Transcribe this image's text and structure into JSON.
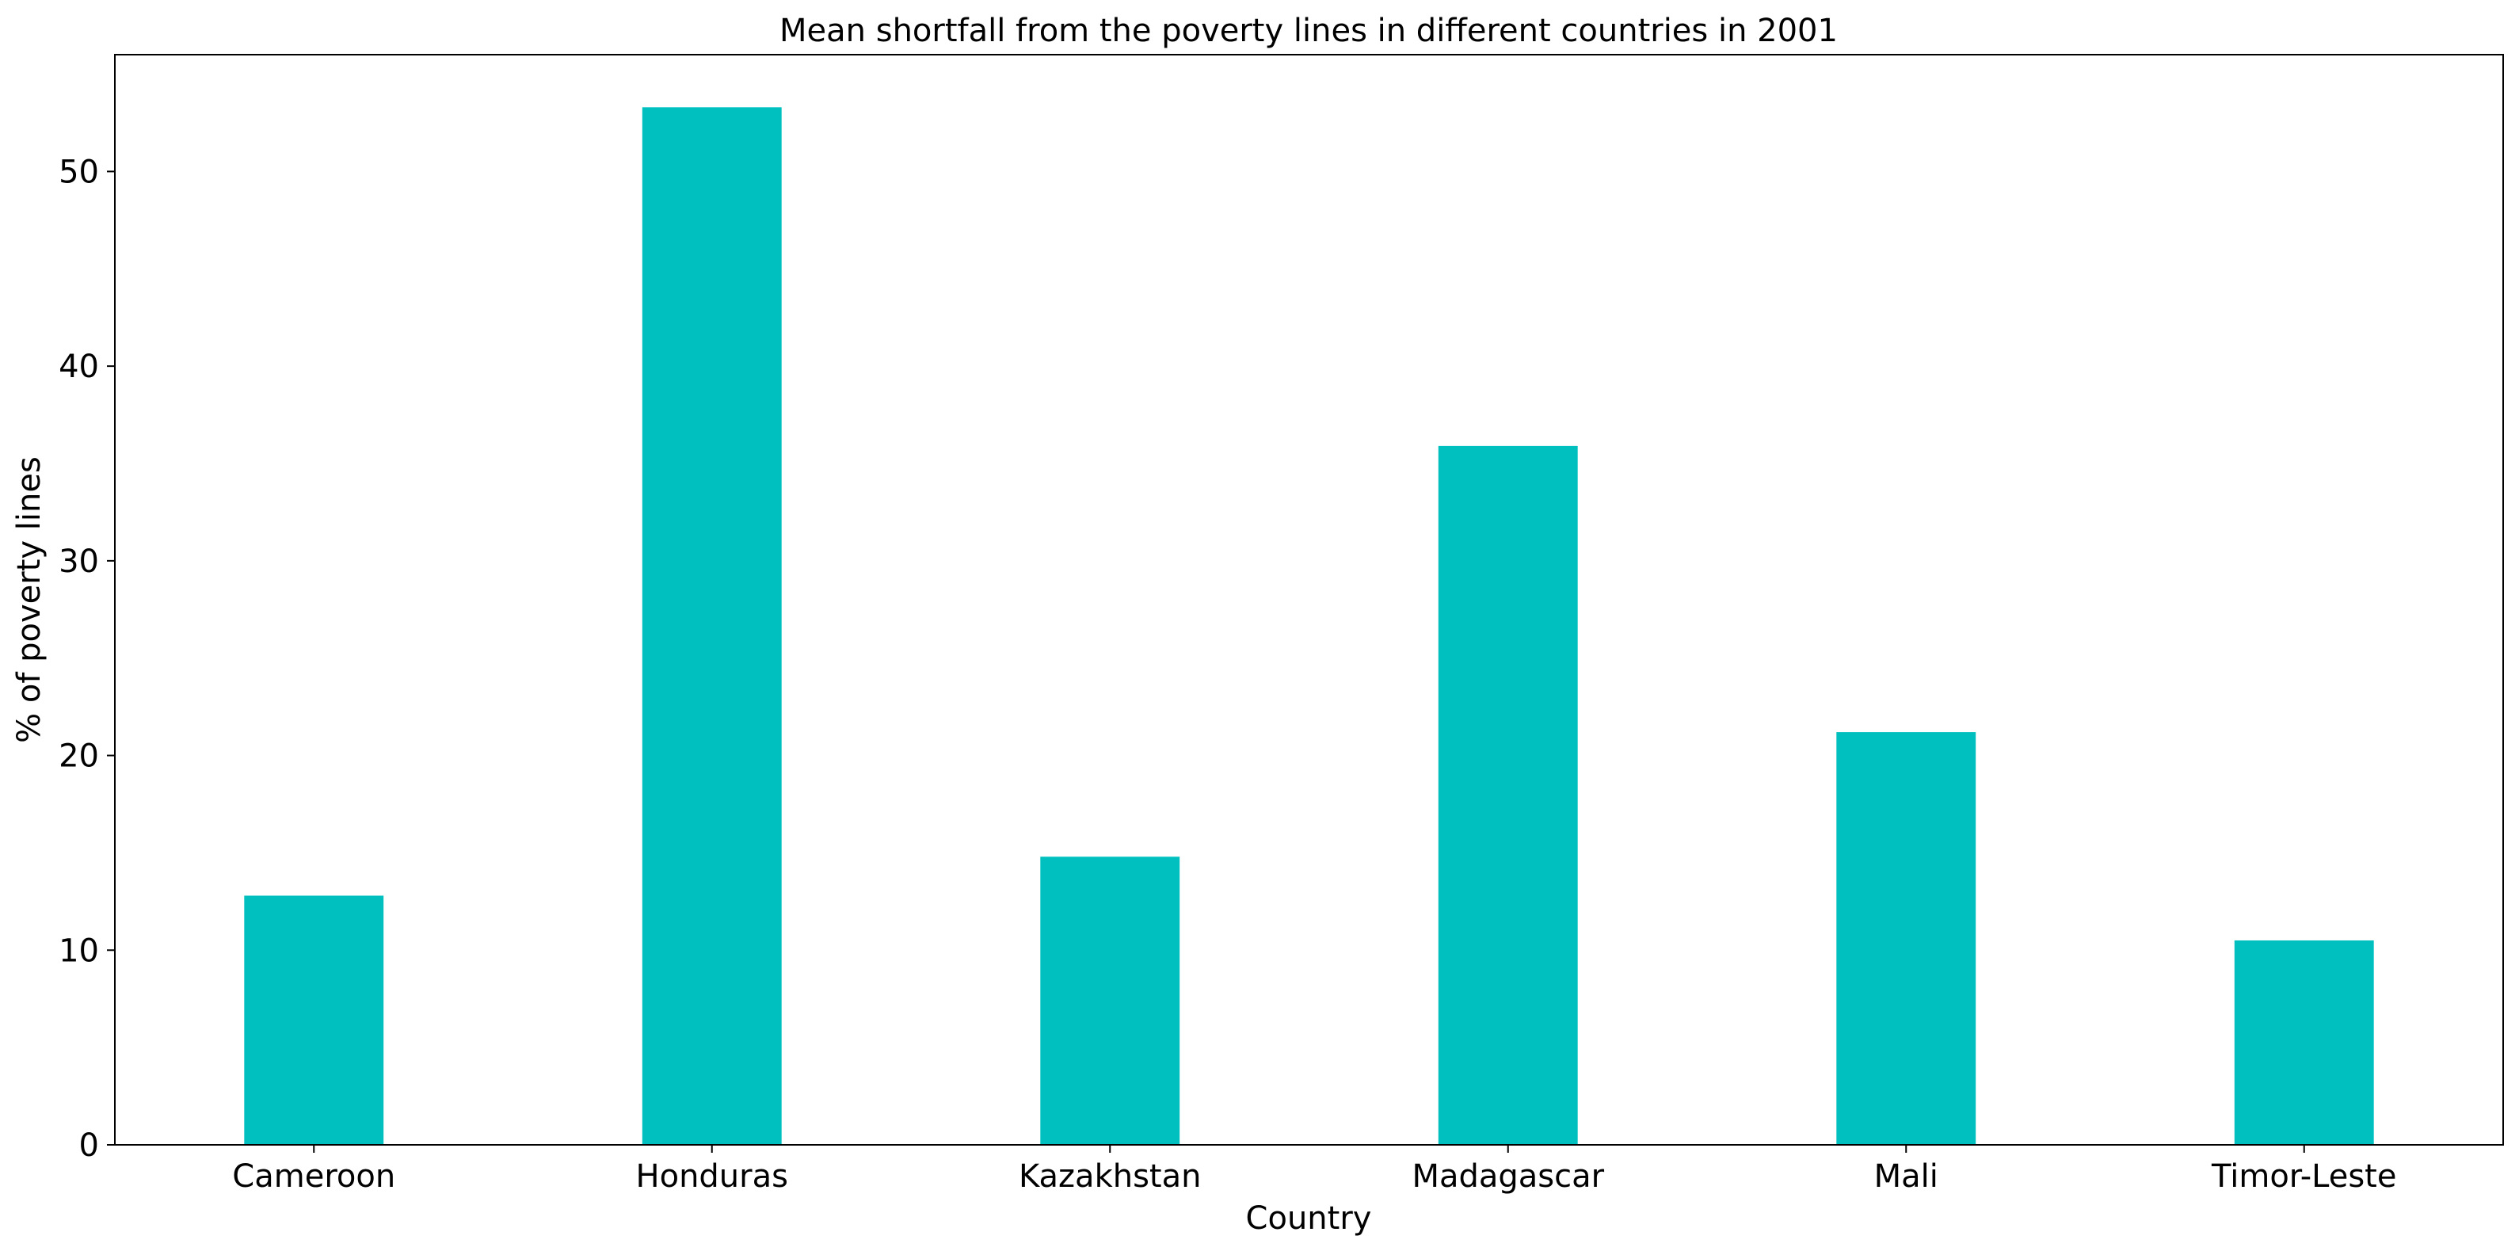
{
  "chart_data": {
    "type": "bar",
    "title": "Mean shortfall from the poverty lines in different countries in 2001",
    "xlabel": "Country",
    "ylabel": "% of poverty lines",
    "categories": [
      "Cameroon",
      "Honduras",
      "Kazakhstan",
      "Madagascar",
      "Mali",
      "Timor-Leste"
    ],
    "values": [
      12.8,
      53.3,
      14.8,
      35.9,
      21.2,
      10.5
    ],
    "ylim": [
      0,
      56
    ],
    "yticks": [
      0,
      10,
      20,
      30,
      40,
      50
    ],
    "grid": false,
    "bar_color": "#00BFBF"
  }
}
